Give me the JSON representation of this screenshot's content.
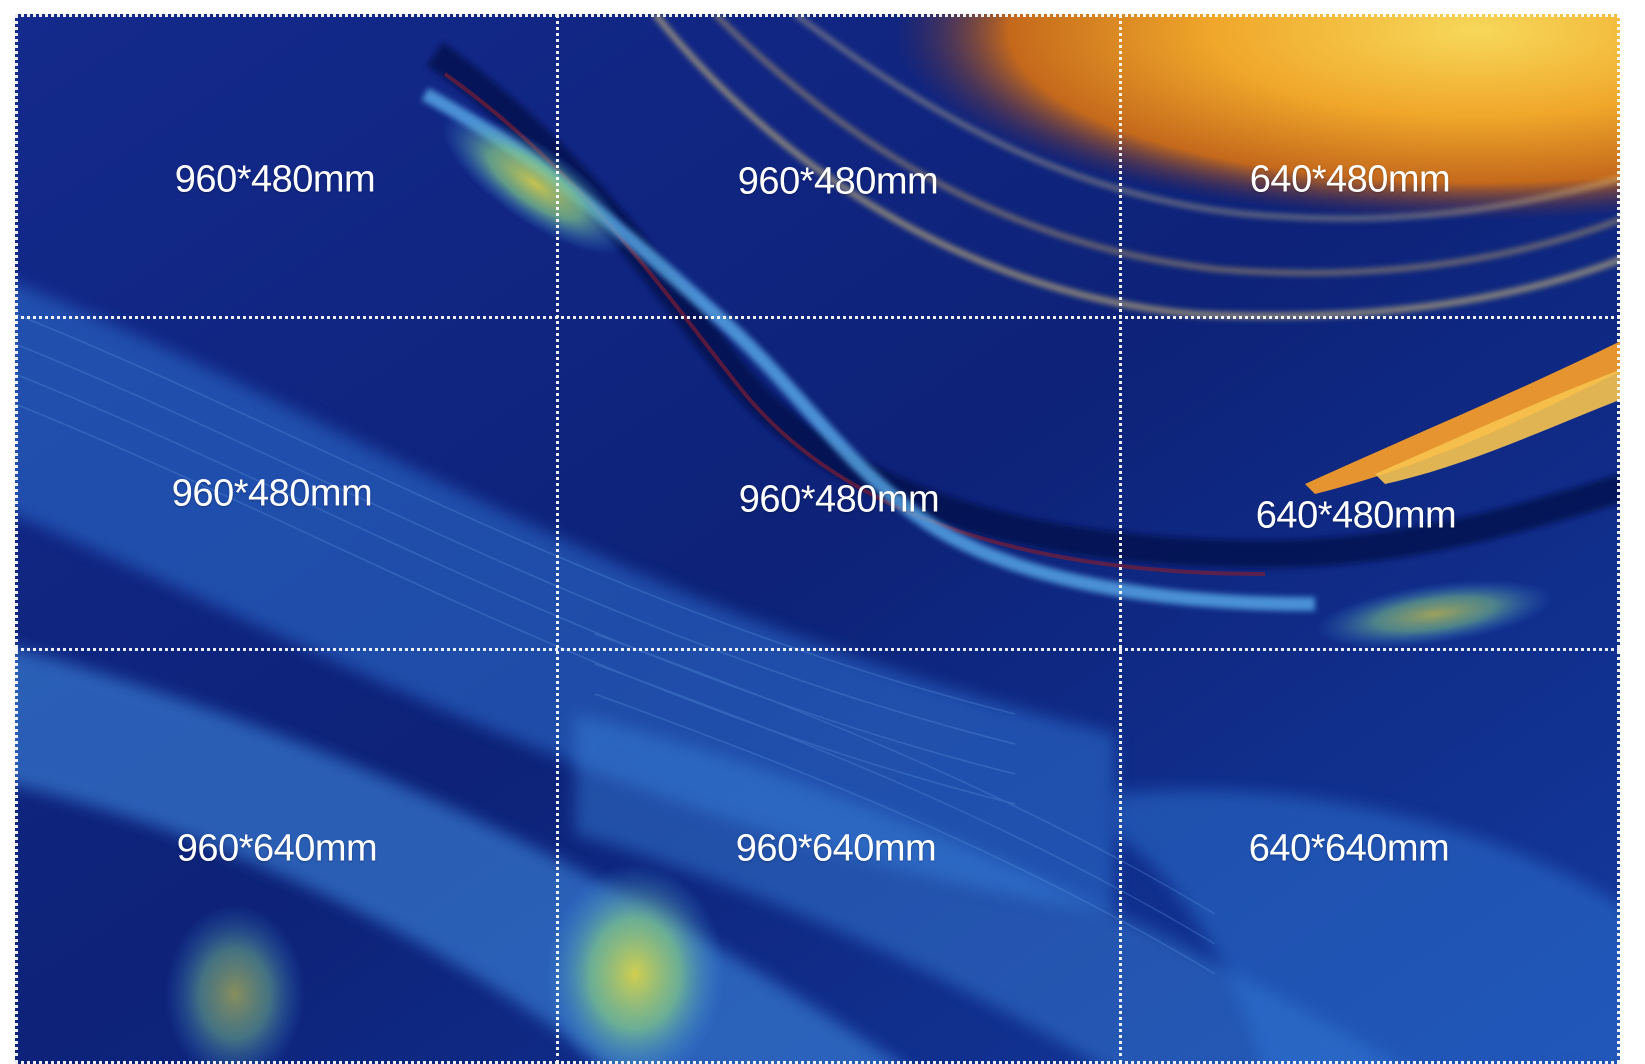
{
  "panels": [
    {
      "row": 1,
      "col": 1,
      "size": "960*480mm"
    },
    {
      "row": 1,
      "col": 2,
      "size": "960*480mm"
    },
    {
      "row": 1,
      "col": 3,
      "size": "640*480mm"
    },
    {
      "row": 2,
      "col": 1,
      "size": "960*480mm"
    },
    {
      "row": 2,
      "col": 2,
      "size": "960*480mm"
    },
    {
      "row": 2,
      "col": 3,
      "size": "640*480mm"
    },
    {
      "row": 3,
      "col": 1,
      "size": "960*640mm"
    },
    {
      "row": 3,
      "col": 2,
      "size": "960*640mm"
    },
    {
      "row": 3,
      "col": 3,
      "size": "640*640mm"
    }
  ],
  "colors": {
    "background_blue": "#0d1e6e",
    "light_blue": "#3f8fe0",
    "orange": "#f3a322",
    "yellow": "#f6d24a",
    "label_text": "#ffffff",
    "divider": "#ffffff"
  }
}
